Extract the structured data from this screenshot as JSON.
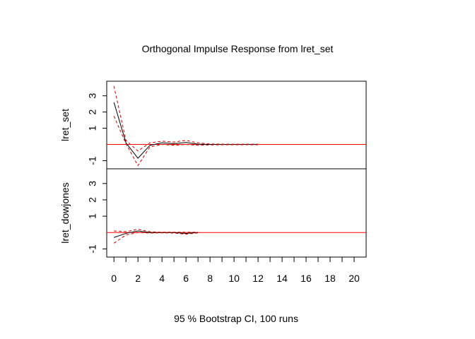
{
  "chart_data": {
    "type": "line",
    "title": "Orthogonal Impulse Response from lret_set",
    "xlabel": "95 % Bootstrap CI,  100 runs",
    "x": [
      0,
      1,
      2,
      3,
      4,
      5,
      6,
      7,
      8,
      9,
      10,
      11,
      12,
      13,
      14,
      15,
      16,
      17,
      18,
      19,
      20
    ],
    "xlim": [
      -0.6,
      21
    ],
    "x_ticks": [
      0,
      1,
      2,
      3,
      4,
      5,
      6,
      7,
      8,
      9,
      10,
      11,
      12,
      13,
      14,
      15,
      16,
      17,
      18,
      19,
      20
    ],
    "x_tick_labels": [
      "0",
      "2",
      "4",
      "6",
      "8",
      "10",
      "12",
      "14",
      "16",
      "18",
      "20"
    ],
    "ylim": [
      -1.5,
      3.9
    ],
    "y_ticks": [
      -1,
      1,
      2,
      3
    ],
    "y_tick_labels": [
      "-1",
      "1",
      "2",
      "3"
    ],
    "zero_line_color": "#ff0000",
    "irf_color": "#000000",
    "ci_color": "#cc0000",
    "panels": [
      {
        "ylabel": "lret_set",
        "series": [
          {
            "role": "irf",
            "values": [
              2.6,
              0.1,
              -0.85,
              -0.05,
              0.1,
              0.05,
              0.12,
              0.02,
              0.0,
              0.0,
              0.0,
              0.0,
              0.0
            ]
          },
          {
            "role": "upper",
            "values": [
              3.6,
              0.25,
              -0.4,
              0.1,
              0.2,
              0.15,
              0.25,
              0.1,
              0.03,
              0.02,
              0.02,
              0.02,
              0.02
            ]
          },
          {
            "role": "lower",
            "values": [
              1.75,
              0.05,
              -1.3,
              -0.15,
              0.0,
              -0.05,
              0.0,
              -0.05,
              -0.03,
              -0.02,
              -0.02,
              -0.02,
              -0.02
            ]
          }
        ]
      },
      {
        "ylabel": "lret_dowjones",
        "series": [
          {
            "role": "irf",
            "values": [
              -0.3,
              -0.05,
              0.1,
              0.0,
              0.0,
              0.0,
              -0.05,
              0.0
            ]
          },
          {
            "role": "upper",
            "values": [
              0.1,
              0.05,
              0.2,
              0.05,
              0.02,
              0.02,
              0.02,
              0.02
            ]
          },
          {
            "role": "lower",
            "values": [
              -0.65,
              -0.15,
              0.0,
              -0.03,
              -0.02,
              -0.03,
              -0.1,
              -0.02
            ]
          }
        ]
      }
    ]
  }
}
